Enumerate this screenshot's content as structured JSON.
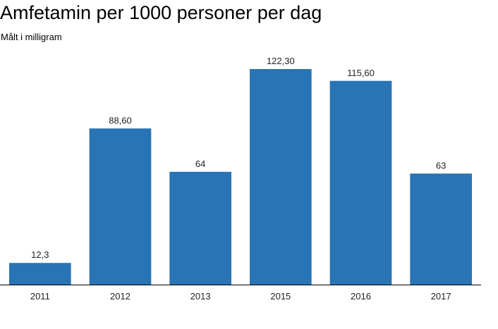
{
  "chart_data": {
    "type": "bar",
    "title": "Amfetamin per 1000 personer per dag",
    "subtitle": "Målt i milligram",
    "categories": [
      "2011",
      "2012",
      "2013",
      "2015",
      "2016",
      "2017"
    ],
    "values": [
      12.3,
      88.6,
      64,
      122.3,
      115.6,
      63
    ],
    "value_labels": [
      "12,3",
      "88,60",
      "64",
      "122,30",
      "115,60",
      "63"
    ],
    "xlabel": "",
    "ylabel": "",
    "ylim": [
      0,
      122.3
    ],
    "grid": false,
    "bar_color": "#2874b5",
    "axis_color": "#000000"
  }
}
